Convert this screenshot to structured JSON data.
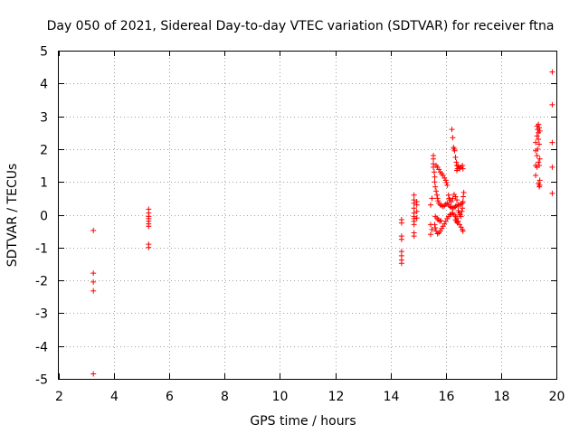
{
  "chart_data": {
    "type": "scatter",
    "title": "Day 050 of 2021, Sidereal Day-to-day VTEC variation (SDTVAR) for receiver ftna",
    "xlabel": "GPS time / hours",
    "ylabel": "SDTVAR / TECUs",
    "xlim": [
      2,
      20
    ],
    "ylim": [
      -5,
      5
    ],
    "xticks": [
      "2",
      "4",
      "6",
      "8",
      "10",
      "12",
      "14",
      "16",
      "18",
      "20"
    ],
    "yticks": [
      "5",
      "4",
      "3",
      "2",
      "1",
      "0",
      "-1",
      "-2",
      "-3",
      "-4",
      "-5"
    ],
    "grid": true,
    "marker": "+",
    "color": "#ff0000",
    "series": [
      {
        "name": "SDTVAR",
        "points": [
          [
            3.25,
            -0.48
          ],
          [
            3.25,
            -1.78
          ],
          [
            3.25,
            -2.05
          ],
          [
            3.25,
            -2.32
          ],
          [
            3.25,
            -4.85
          ],
          [
            5.25,
            0.17
          ],
          [
            5.25,
            0.05
          ],
          [
            5.25,
            -0.05
          ],
          [
            5.25,
            -0.12
          ],
          [
            5.25,
            -0.2
          ],
          [
            5.25,
            -0.28
          ],
          [
            5.25,
            -0.35
          ],
          [
            5.25,
            -0.9
          ],
          [
            5.25,
            -1.0
          ],
          [
            14.4,
            -0.15
          ],
          [
            14.4,
            -0.25
          ],
          [
            14.4,
            -0.65
          ],
          [
            14.4,
            -0.75
          ],
          [
            14.4,
            -1.12
          ],
          [
            14.4,
            -1.25
          ],
          [
            14.4,
            -1.38
          ],
          [
            14.4,
            -1.48
          ],
          [
            14.85,
            0.6
          ],
          [
            14.85,
            0.45
          ],
          [
            14.85,
            0.35
          ],
          [
            14.85,
            0.2
          ],
          [
            14.85,
            0.05
          ],
          [
            14.85,
            -0.05
          ],
          [
            14.85,
            -0.12
          ],
          [
            14.85,
            -0.2
          ],
          [
            14.85,
            -0.3
          ],
          [
            14.85,
            -0.55
          ],
          [
            14.85,
            -0.65
          ],
          [
            14.95,
            0.4
          ],
          [
            14.95,
            0.3
          ],
          [
            14.95,
            0.1
          ],
          [
            14.95,
            -0.1
          ],
          [
            15.45,
            0.3
          ],
          [
            15.45,
            -0.3
          ],
          [
            15.45,
            -0.6
          ],
          [
            15.5,
            0.5
          ],
          [
            15.5,
            -0.45
          ],
          [
            15.55,
            1.8
          ],
          [
            15.55,
            1.7
          ],
          [
            15.55,
            1.55
          ],
          [
            15.55,
            1.45
          ],
          [
            15.58,
            1.3
          ],
          [
            15.6,
            1.15
          ],
          [
            15.6,
            1.0
          ],
          [
            15.62,
            0.85
          ],
          [
            15.65,
            0.72
          ],
          [
            15.68,
            0.6
          ],
          [
            15.7,
            0.5
          ],
          [
            15.72,
            0.42
          ],
          [
            15.75,
            0.35
          ],
          [
            15.8,
            0.3
          ],
          [
            15.85,
            0.28
          ],
          [
            15.9,
            0.25
          ],
          [
            15.95,
            0.28
          ],
          [
            16.0,
            0.32
          ],
          [
            16.05,
            0.35
          ],
          [
            16.1,
            0.3
          ],
          [
            16.15,
            0.25
          ],
          [
            16.2,
            0.22
          ],
          [
            16.25,
            0.2
          ],
          [
            16.3,
            0.22
          ],
          [
            16.35,
            0.25
          ],
          [
            16.4,
            0.28
          ],
          [
            16.45,
            0.3
          ],
          [
            16.5,
            0.3
          ],
          [
            16.55,
            0.32
          ],
          [
            16.6,
            0.35
          ],
          [
            15.65,
            1.5
          ],
          [
            15.7,
            1.45
          ],
          [
            15.75,
            1.38
          ],
          [
            15.8,
            1.3
          ],
          [
            15.85,
            1.25
          ],
          [
            15.9,
            1.2
          ],
          [
            15.95,
            1.12
          ],
          [
            16.0,
            1.05
          ],
          [
            16.02,
            0.98
          ],
          [
            16.05,
            0.9
          ],
          [
            15.6,
            -0.3
          ],
          [
            15.62,
            -0.4
          ],
          [
            15.65,
            -0.5
          ],
          [
            15.7,
            -0.58
          ],
          [
            15.75,
            -0.55
          ],
          [
            15.8,
            -0.5
          ],
          [
            15.85,
            -0.42
          ],
          [
            15.9,
            -0.35
          ],
          [
            15.95,
            -0.28
          ],
          [
            16.0,
            -0.2
          ],
          [
            16.05,
            -0.12
          ],
          [
            16.1,
            -0.05
          ],
          [
            16.15,
            0.0
          ],
          [
            16.2,
            0.02
          ],
          [
            16.25,
            0.05
          ],
          [
            16.3,
            0.0
          ],
          [
            16.35,
            -0.05
          ],
          [
            16.4,
            -0.1
          ],
          [
            16.45,
            -0.2
          ],
          [
            16.5,
            -0.3
          ],
          [
            16.55,
            -0.38
          ],
          [
            16.6,
            -0.45
          ],
          [
            16.62,
            -0.5
          ],
          [
            15.62,
            -0.05
          ],
          [
            15.68,
            -0.1
          ],
          [
            15.72,
            -0.15
          ],
          [
            15.78,
            -0.2
          ],
          [
            15.82,
            -0.18
          ],
          [
            16.1,
            0.6
          ],
          [
            16.12,
            0.5
          ],
          [
            16.15,
            0.45
          ],
          [
            16.2,
            0.4
          ],
          [
            16.25,
            0.5
          ],
          [
            16.3,
            0.62
          ],
          [
            16.35,
            0.55
          ],
          [
            16.4,
            0.45
          ],
          [
            16.45,
            0.12
          ],
          [
            16.48,
            0.05
          ],
          [
            16.52,
            0.0
          ],
          [
            16.55,
            -0.05
          ],
          [
            16.58,
            0.1
          ],
          [
            16.6,
            0.2
          ],
          [
            16.62,
            0.4
          ],
          [
            16.63,
            0.55
          ],
          [
            16.65,
            0.68
          ],
          [
            16.35,
            -0.15
          ],
          [
            16.38,
            -0.2
          ],
          [
            16.42,
            -0.25
          ],
          [
            16.22,
            2.6
          ],
          [
            16.25,
            2.35
          ],
          [
            16.28,
            2.05
          ],
          [
            16.3,
            2.0
          ],
          [
            16.32,
            1.95
          ],
          [
            16.35,
            1.75
          ],
          [
            16.38,
            1.6
          ],
          [
            16.4,
            1.5
          ],
          [
            16.42,
            1.4
          ],
          [
            16.45,
            1.48
          ],
          [
            16.48,
            1.42
          ],
          [
            16.5,
            1.4
          ],
          [
            16.55,
            1.45
          ],
          [
            16.6,
            1.5
          ],
          [
            16.62,
            1.4
          ],
          [
            16.4,
            1.35
          ],
          [
            19.25,
            2.2
          ],
          [
            19.25,
            1.95
          ],
          [
            19.25,
            1.5
          ],
          [
            19.25,
            1.2
          ],
          [
            19.3,
            2.7
          ],
          [
            19.3,
            2.4
          ],
          [
            19.3,
            1.8
          ],
          [
            19.3,
            1.45
          ],
          [
            19.32,
            2.6
          ],
          [
            19.32,
            2.0
          ],
          [
            19.35,
            2.75
          ],
          [
            19.35,
            2.5
          ],
          [
            19.35,
            2.3
          ],
          [
            19.35,
            1.6
          ],
          [
            19.35,
            0.95
          ],
          [
            19.38,
            2.65
          ],
          [
            19.38,
            2.15
          ],
          [
            19.38,
            1.5
          ],
          [
            19.38,
            0.85
          ],
          [
            19.4,
            2.55
          ],
          [
            19.4,
            1.7
          ],
          [
            19.4,
            1.05
          ],
          [
            19.4,
            0.9
          ],
          [
            19.85,
            4.35
          ],
          [
            19.85,
            3.35
          ],
          [
            19.85,
            2.2
          ],
          [
            19.85,
            1.45
          ],
          [
            19.85,
            0.65
          ]
        ]
      }
    ]
  }
}
